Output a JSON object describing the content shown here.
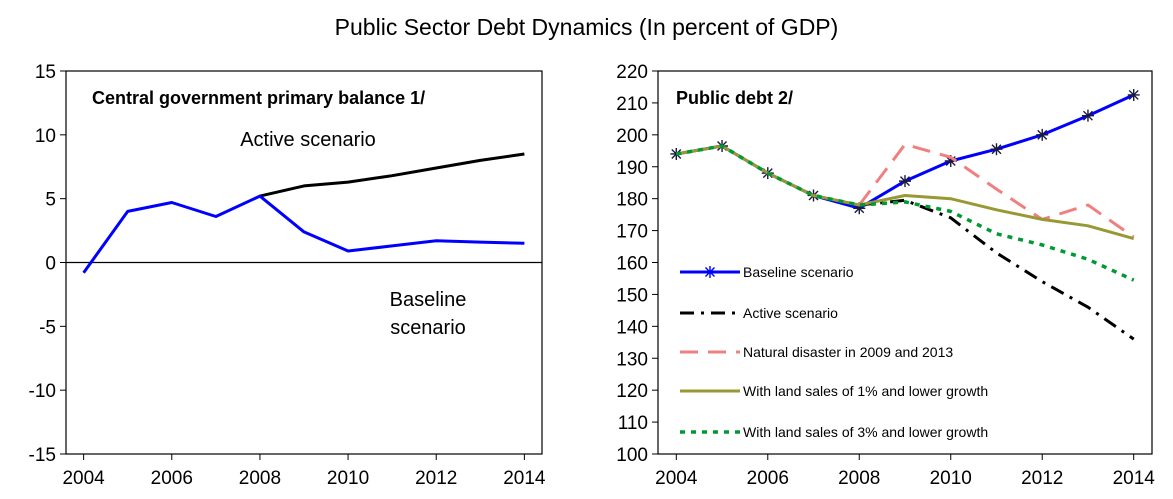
{
  "figure_title": "Public Sector Debt Dynamics (In percent of GDP)",
  "chart_data": [
    {
      "type": "line",
      "title": "Central government primary balance 1/",
      "x_ticks": [
        2004,
        2006,
        2008,
        2010,
        2012,
        2014
      ],
      "y_ticks": [
        -15,
        -10,
        -5,
        0,
        5,
        10,
        15
      ],
      "xlim": [
        2003.6,
        2014.4
      ],
      "ylim": [
        -15,
        15
      ],
      "annotations": [
        "Active scenario",
        "Baseline",
        "scenario"
      ],
      "series": [
        {
          "name": "Active scenario",
          "color": "#000000",
          "x": [
            2008,
            2009,
            2010,
            2011,
            2012,
            2013,
            2014
          ],
          "values": [
            5.2,
            6.0,
            6.3,
            6.8,
            7.4,
            8.0,
            8.5
          ]
        },
        {
          "name": "Baseline scenario",
          "color": "#0000ff",
          "x": [
            2004,
            2005,
            2006,
            2007,
            2008,
            2009,
            2010,
            2011,
            2012,
            2013,
            2014
          ],
          "values": [
            -0.8,
            4.0,
            4.7,
            3.6,
            5.2,
            2.4,
            0.9,
            1.3,
            1.7,
            1.6,
            1.5
          ]
        }
      ]
    },
    {
      "type": "line",
      "title": "Public debt 2/",
      "x_ticks": [
        2004,
        2006,
        2008,
        2010,
        2012,
        2014
      ],
      "y_ticks": [
        100,
        110,
        120,
        130,
        140,
        150,
        160,
        170,
        180,
        190,
        200,
        210,
        220
      ],
      "xlim": [
        2003.6,
        2014.4
      ],
      "ylim": [
        100,
        220
      ],
      "legend_position": "left",
      "series": [
        {
          "name": "Baseline scenario",
          "color": "#0000ff",
          "style": "solid-star",
          "x": [
            2004,
            2005,
            2006,
            2007,
            2008,
            2009,
            2010,
            2011,
            2012,
            2013,
            2014
          ],
          "values": [
            194.0,
            196.5,
            188.0,
            181.0,
            177.0,
            185.5,
            191.8,
            195.5,
            200.0,
            206.0,
            212.5
          ]
        },
        {
          "name": "Active scenario",
          "color": "#000000",
          "style": "dash-dot",
          "x": [
            2008,
            2009,
            2010,
            2011,
            2012,
            2013,
            2014
          ],
          "values": [
            178.0,
            179.5,
            174.0,
            163.0,
            154.0,
            146.0,
            136.0
          ]
        },
        {
          "name": "Natural disaster in 2009 and 2013",
          "color": "#f08080",
          "style": "long-dash",
          "x": [
            2008,
            2009,
            2010,
            2011,
            2012,
            2013,
            2014
          ],
          "values": [
            178.0,
            197.0,
            193.0,
            183.0,
            173.5,
            178.0,
            168.0
          ]
        },
        {
          "name": "With land sales of 1% and lower growth",
          "color": "#999933",
          "style": "solid",
          "x": [
            2004,
            2005,
            2006,
            2007,
            2008,
            2009,
            2010,
            2011,
            2012,
            2013,
            2014
          ],
          "values": [
            194.0,
            196.5,
            188.0,
            181.0,
            178.0,
            181.0,
            180.0,
            176.5,
            173.5,
            171.5,
            167.5
          ]
        },
        {
          "name": "With land sales of 3% and lower growth",
          "color": "#009933",
          "style": "dotted",
          "x": [
            2004,
            2005,
            2006,
            2007,
            2008,
            2009,
            2010,
            2011,
            2012,
            2013,
            2014
          ],
          "values": [
            194.0,
            196.5,
            188.0,
            181.0,
            178.0,
            179.0,
            176.0,
            169.0,
            165.5,
            161.0,
            154.5
          ]
        }
      ]
    }
  ]
}
